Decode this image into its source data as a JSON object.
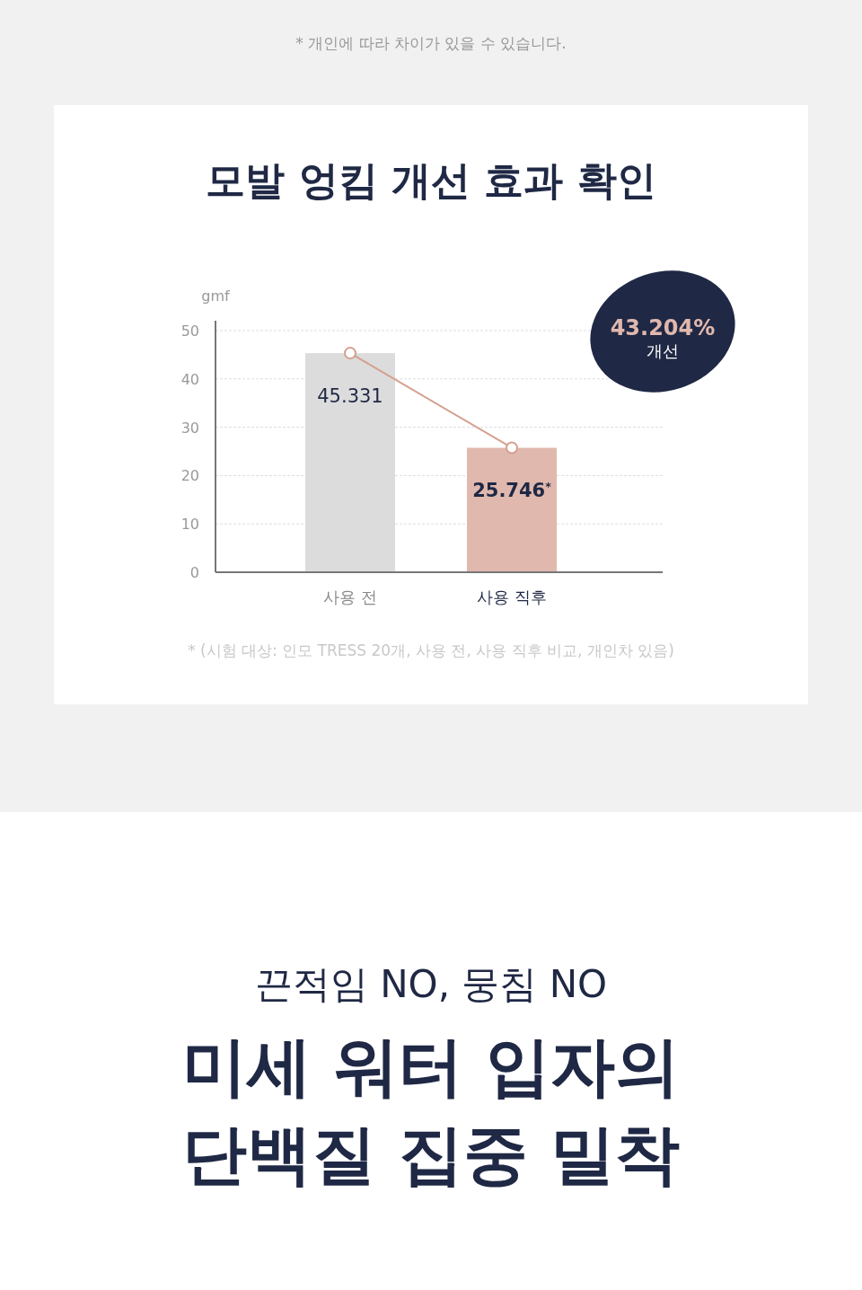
{
  "chart_data": {
    "type": "bar",
    "title": "모발 엉킴 개선 효과 확인",
    "ylabel": "gmf",
    "categories": [
      "사용 전",
      "사용 직후"
    ],
    "series": [
      {
        "colors": [
          "#dcdcdc",
          "#e0b8ae"
        ],
        "values": [
          45.331,
          25.746
        ],
        "value_labels": [
          "45.331",
          "25.746$^{*}$"
        ]
      },
      {
        "type": "line",
        "color": "#d4a090",
        "marker": "circle",
        "values": [
          45.331,
          25.746
        ]
      }
    ],
    "ylim": [
      0,
      50
    ],
    "yticks": [
      0,
      10,
      20,
      30,
      40,
      50
    ],
    "grid": "y",
    "annotations": [
      "* 개인에 따라 차이가 있을 수 있습니다.",
      "43.204%",
      "개선",
      "* (시험 대상: 인모 TRESS 20개, 사용 전, 사용 직후 비교, 개인차 있음)",
      "끈적임 NO, 뭉침 NO",
      "미세 워터 입자의",
      "단백질 집중 밀착"
    ]
  }
}
